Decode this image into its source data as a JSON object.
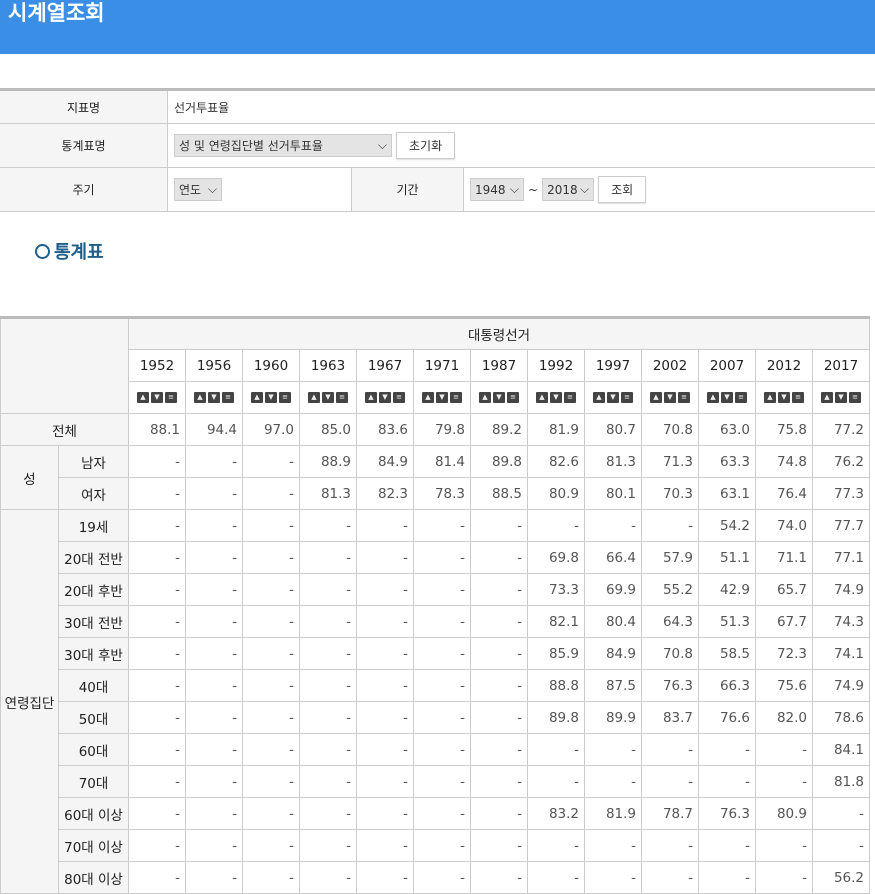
{
  "title": "시계열조회",
  "form": {
    "indicator_label": "지표명",
    "indicator_value": "선거투표율",
    "table_label": "통계표명",
    "table_value": "성 및 연령집단별 선거투표율",
    "reset_label": "초기화",
    "period_label": "주기",
    "period_value": "연도",
    "range_label": "기간",
    "range_from": "1948",
    "range_sep": "~",
    "range_to": "2018",
    "search_label": "조회"
  },
  "section_title": "통계표",
  "table": {
    "group_header": "대통령선거",
    "years": [
      "1952",
      "1956",
      "1960",
      "1963",
      "1967",
      "1971",
      "1987",
      "1992",
      "1997",
      "2002",
      "2007",
      "2012",
      "2017"
    ],
    "rows": [
      {
        "group": "전체",
        "label": "",
        "values": [
          "88.1",
          "94.4",
          "97.0",
          "85.0",
          "83.6",
          "79.8",
          "89.2",
          "81.9",
          "80.7",
          "70.8",
          "63.0",
          "75.8",
          "77.2"
        ]
      },
      {
        "group": "성",
        "label": "남자",
        "values": [
          "-",
          "-",
          "-",
          "88.9",
          "84.9",
          "81.4",
          "89.8",
          "82.6",
          "81.3",
          "71.3",
          "63.3",
          "74.8",
          "76.2"
        ]
      },
      {
        "group": "",
        "label": "여자",
        "values": [
          "-",
          "-",
          "-",
          "81.3",
          "82.3",
          "78.3",
          "88.5",
          "80.9",
          "80.1",
          "70.3",
          "63.1",
          "76.4",
          "77.3"
        ]
      },
      {
        "group": "연령집단",
        "label": "19세",
        "values": [
          "-",
          "-",
          "-",
          "-",
          "-",
          "-",
          "-",
          "-",
          "-",
          "-",
          "54.2",
          "74.0",
          "77.7"
        ]
      },
      {
        "group": "",
        "label": "20대 전반",
        "values": [
          "-",
          "-",
          "-",
          "-",
          "-",
          "-",
          "-",
          "69.8",
          "66.4",
          "57.9",
          "51.1",
          "71.1",
          "77.1"
        ]
      },
      {
        "group": "",
        "label": "20대 후반",
        "values": [
          "-",
          "-",
          "-",
          "-",
          "-",
          "-",
          "-",
          "73.3",
          "69.9",
          "55.2",
          "42.9",
          "65.7",
          "74.9"
        ]
      },
      {
        "group": "",
        "label": "30대 전반",
        "values": [
          "-",
          "-",
          "-",
          "-",
          "-",
          "-",
          "-",
          "82.1",
          "80.4",
          "64.3",
          "51.3",
          "67.7",
          "74.3"
        ]
      },
      {
        "group": "",
        "label": "30대 후반",
        "values": [
          "-",
          "-",
          "-",
          "-",
          "-",
          "-",
          "-",
          "85.9",
          "84.9",
          "70.8",
          "58.5",
          "72.3",
          "74.1"
        ]
      },
      {
        "group": "",
        "label": "40대",
        "values": [
          "-",
          "-",
          "-",
          "-",
          "-",
          "-",
          "-",
          "88.8",
          "87.5",
          "76.3",
          "66.3",
          "75.6",
          "74.9"
        ]
      },
      {
        "group": "",
        "label": "50대",
        "values": [
          "-",
          "-",
          "-",
          "-",
          "-",
          "-",
          "-",
          "89.8",
          "89.9",
          "83.7",
          "76.6",
          "82.0",
          "78.6"
        ]
      },
      {
        "group": "",
        "label": "60대",
        "values": [
          "-",
          "-",
          "-",
          "-",
          "-",
          "-",
          "-",
          "-",
          "-",
          "-",
          "-",
          "-",
          "84.1"
        ]
      },
      {
        "group": "",
        "label": "70대",
        "values": [
          "-",
          "-",
          "-",
          "-",
          "-",
          "-",
          "-",
          "-",
          "-",
          "-",
          "-",
          "-",
          "81.8"
        ]
      },
      {
        "group": "",
        "label": "60대 이상",
        "values": [
          "-",
          "-",
          "-",
          "-",
          "-",
          "-",
          "-",
          "83.2",
          "81.9",
          "78.7",
          "76.3",
          "80.9",
          "-"
        ]
      },
      {
        "group": "",
        "label": "70대 이상",
        "values": [
          "-",
          "-",
          "-",
          "-",
          "-",
          "-",
          "-",
          "-",
          "-",
          "-",
          "-",
          "-",
          "-"
        ]
      },
      {
        "group": "",
        "label": "80대 이상",
        "values": [
          "-",
          "-",
          "-",
          "-",
          "-",
          "-",
          "-",
          "-",
          "-",
          "-",
          "-",
          "-",
          "56.2"
        ]
      }
    ]
  }
}
